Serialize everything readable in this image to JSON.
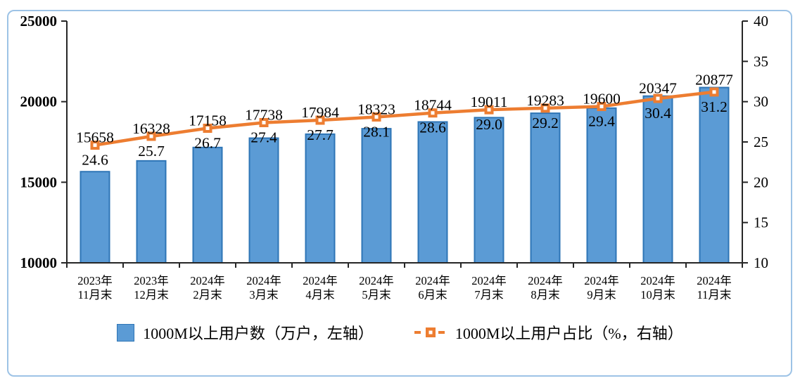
{
  "chart_data": {
    "type": "bar+line combo",
    "title": "",
    "grid": false,
    "legend_position": "bottom",
    "categories": [
      {
        "line1": "2023年",
        "line2": "11月末"
      },
      {
        "line1": "2023年",
        "line2": "12月末"
      },
      {
        "line1": "2024年",
        "line2": "2月末"
      },
      {
        "line1": "2024年",
        "line2": "3月末"
      },
      {
        "line1": "2024年",
        "line2": "4月末"
      },
      {
        "line1": "2024年",
        "line2": "5月末"
      },
      {
        "line1": "2024年",
        "line2": "6月末"
      },
      {
        "line1": "2024年",
        "line2": "7月末"
      },
      {
        "line1": "2024年",
        "line2": "8月末"
      },
      {
        "line1": "2024年",
        "line2": "9月末"
      },
      {
        "line1": "2024年",
        "line2": "10月末"
      },
      {
        "line1": "2024年",
        "line2": "11月末"
      }
    ],
    "series": [
      {
        "name": "1000M以上用户数（万户，左轴）",
        "type": "bar",
        "axis": "left",
        "values": [
          15658,
          16328,
          17158,
          17738,
          17984,
          18323,
          18744,
          19011,
          19283,
          19600,
          20347,
          20877
        ],
        "labels": [
          "15658",
          "16328",
          "17158",
          "17738",
          "17984",
          "18323",
          "18744",
          "19011",
          "19283",
          "19600",
          "20347",
          "20877"
        ]
      },
      {
        "name": "1000M以上用户占比（%，右轴）",
        "type": "line",
        "axis": "right",
        "values": [
          24.6,
          25.7,
          26.7,
          27.4,
          27.7,
          28.1,
          28.6,
          29.0,
          29.2,
          29.4,
          30.4,
          31.2
        ],
        "labels": [
          "24.6",
          "25.7",
          "26.7",
          "27.4",
          "27.7",
          "28.1",
          "28.6",
          "29.0",
          "29.2",
          "29.4",
          "30.4",
          "31.2"
        ]
      }
    ],
    "left_axis": {
      "min": 10000,
      "max": 25000,
      "ticks": [
        10000,
        15000,
        20000,
        25000
      ]
    },
    "right_axis": {
      "min": 10,
      "max": 40,
      "ticks": [
        10,
        15,
        20,
        25,
        30,
        35,
        40
      ]
    },
    "colors": {
      "bar_fill": "#5B9BD5",
      "bar_border": "#2E75B6",
      "line": "#ED7D31",
      "marker_center": "#FFFFFF",
      "axis": "#262626",
      "frame_border": "#9DC3E6",
      "text": "#000000"
    }
  }
}
